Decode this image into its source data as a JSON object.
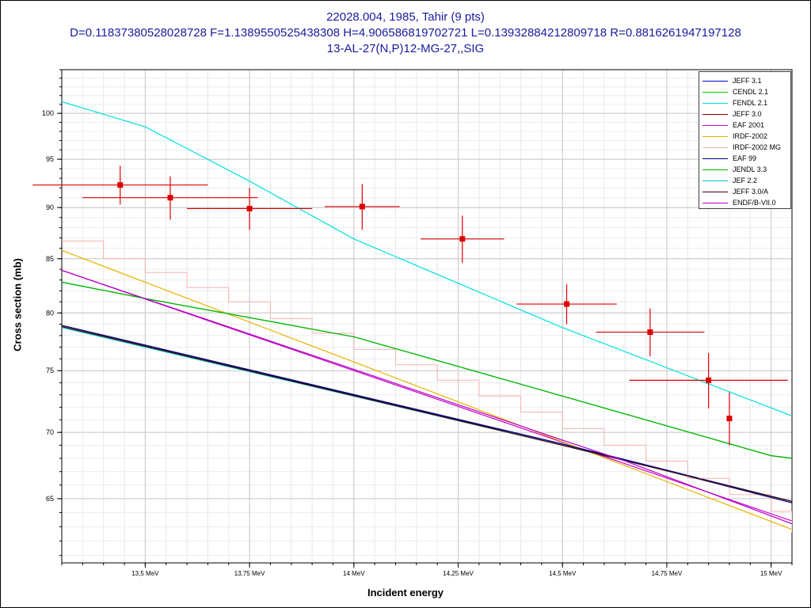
{
  "title": {
    "line1": "22028.004, 1985, Tahir (9 pts)",
    "line2": "D=0.11837380528028728 F=1.1389550525438308 H=4.906586819702721 L=0.13932884212809718 R=0.8816261947197128",
    "line3": "13-AL-27(N,P)12-MG-27,,SIG"
  },
  "chart_data": {
    "type": "line",
    "xlabel": "Incident energy",
    "ylabel": "Cross section (mb)",
    "xlim": [
      13.3,
      15.05
    ],
    "ylim": [
      60.5,
      105
    ],
    "yscale": "log",
    "grid": true,
    "legend_position": "top-right",
    "x_ticks": [
      {
        "value": 13.5,
        "label": "13,5 MeV"
      },
      {
        "value": 13.75,
        "label": "13,75 MeV"
      },
      {
        "value": 14.0,
        "label": "14 MeV"
      },
      {
        "value": 14.25,
        "label": "14,25 MeV"
      },
      {
        "value": 14.5,
        "label": "14,5 MeV"
      },
      {
        "value": 14.75,
        "label": "14,75 MeV"
      },
      {
        "value": 15.0,
        "label": "15 MeV"
      }
    ],
    "y_ticks": [
      {
        "value": 65,
        "label": "65"
      },
      {
        "value": 70,
        "label": "70"
      },
      {
        "value": 75,
        "label": "75"
      },
      {
        "value": 80,
        "label": "80"
      },
      {
        "value": 85,
        "label": "85"
      },
      {
        "value": 90,
        "label": "90"
      },
      {
        "value": 95,
        "label": "95"
      },
      {
        "value": 100,
        "label": "100"
      }
    ],
    "series": [
      {
        "name": "JEFF 3.1",
        "color": "#0000c8",
        "step": false,
        "x": [
          13.3,
          14.5,
          15.05
        ],
        "y": [
          78.8,
          69.1,
          64.8
        ]
      },
      {
        "name": "CENDL 2.1",
        "color": "#00c800",
        "step": false,
        "x": [
          13.3,
          13.5,
          14.0,
          14.5,
          15.0,
          15.05
        ],
        "y": [
          82.8,
          81.3,
          77.9,
          72.9,
          68.2,
          68.0
        ]
      },
      {
        "name": "FENDL 2.1",
        "color": "#00e0e0",
        "step": false,
        "x": [
          13.3,
          13.5,
          13.75,
          14.0,
          14.5,
          15.05
        ],
        "y": [
          101.3,
          98.5,
          92.7,
          86.9,
          78.7,
          71.3
        ]
      },
      {
        "name": "JEFF 3.0",
        "color": "#800000",
        "step": false,
        "x": [
          13.3,
          14.5,
          15.05
        ],
        "y": [
          78.8,
          69.0,
          64.8
        ]
      },
      {
        "name": "EAF 2001",
        "color": "#c800c8",
        "step": false,
        "x": [
          13.3,
          15.05
        ],
        "y": [
          83.9,
          63.4
        ]
      },
      {
        "name": "IRDF-2002",
        "color": "#e6b400",
        "step": false,
        "x": [
          13.3,
          15.05
        ],
        "y": [
          85.8,
          62.8
        ]
      },
      {
        "name": "IRDF-2002 MG",
        "color": "#f0b4b4",
        "step": true,
        "x": [
          13.3,
          13.4,
          13.5,
          13.6,
          13.7,
          13.8,
          13.9,
          14.0,
          14.1,
          14.2,
          14.3,
          14.4,
          14.5,
          14.6,
          14.7,
          14.8,
          14.9,
          15.0,
          15.05
        ],
        "y": [
          86.7,
          85.0,
          83.7,
          82.3,
          81.0,
          79.5,
          78.2,
          76.8,
          75.5,
          74.2,
          72.9,
          71.6,
          70.3,
          69.0,
          67.8,
          66.5,
          65.3,
          64.1,
          62.6
        ]
      },
      {
        "name": "EAF 99",
        "color": "#000080",
        "step": false,
        "x": [
          13.3,
          14.5,
          15.05
        ],
        "y": [
          78.9,
          69.1,
          64.7
        ]
      },
      {
        "name": "JENDL 3.3",
        "color": "#00b400",
        "step": false,
        "x": [
          13.3,
          13.5,
          14.0,
          14.5,
          15.0,
          15.05
        ],
        "y": [
          82.8,
          81.3,
          77.9,
          72.9,
          68.2,
          68.0
        ]
      },
      {
        "name": "JEF 2.2",
        "color": "#00c8c8",
        "step": false,
        "x": [
          13.3,
          14.5,
          15.05
        ],
        "y": [
          78.7,
          69.0,
          64.8
        ]
      },
      {
        "name": "JEFF 3.0/A",
        "color": "#400000",
        "step": false,
        "x": [
          13.3,
          14.5,
          15.05
        ],
        "y": [
          78.8,
          69.0,
          64.8
        ]
      },
      {
        "name": "ENDF/B-VII.0",
        "color": "#b400c8",
        "step": false,
        "x": [
          13.3,
          14.5,
          14.65,
          15.05
        ],
        "y": [
          83.9,
          69.4,
          67.8,
          63.2
        ]
      }
    ],
    "experimental": {
      "color": "#dd0000",
      "points": [
        {
          "x": 13.44,
          "y": 92.3,
          "xerr": 0.21,
          "yerr": 2.0
        },
        {
          "x": 13.56,
          "y": 91.0,
          "xerr": 0.21,
          "yerr": 2.2
        },
        {
          "x": 13.75,
          "y": 89.9,
          "xerr": 0.15,
          "yerr": 2.1
        },
        {
          "x": 14.02,
          "y": 90.1,
          "xerr": 0.09,
          "yerr": 2.3
        },
        {
          "x": 14.26,
          "y": 86.9,
          "xerr": 0.1,
          "yerr": 2.3
        },
        {
          "x": 14.51,
          "y": 80.8,
          "xerr": 0.12,
          "yerr": 1.8
        },
        {
          "x": 14.71,
          "y": 78.3,
          "xerr": 0.13,
          "yerr": 2.1
        },
        {
          "x": 14.85,
          "y": 74.2,
          "xerr": 0.19,
          "yerr": 2.3
        },
        {
          "x": 14.9,
          "y": 71.1,
          "xerr": 0.0,
          "yerr": 2.1
        }
      ]
    }
  }
}
